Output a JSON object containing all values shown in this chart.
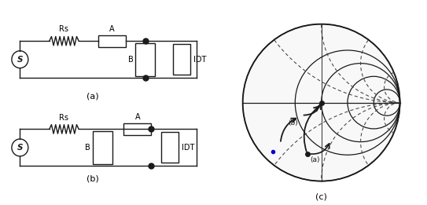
{
  "lc": "#1a1a1a",
  "lw": 1.0,
  "sc": "#1a1a1a",
  "slw": 0.9,
  "sdash": "#444444",
  "blue": "#0000cc",
  "label_Rs": "Rs",
  "label_A": "A",
  "label_B": "B",
  "label_IDT": "IDT",
  "label_S": "S",
  "label_a": "(a)",
  "label_b": "(b)",
  "label_c": "(c)"
}
